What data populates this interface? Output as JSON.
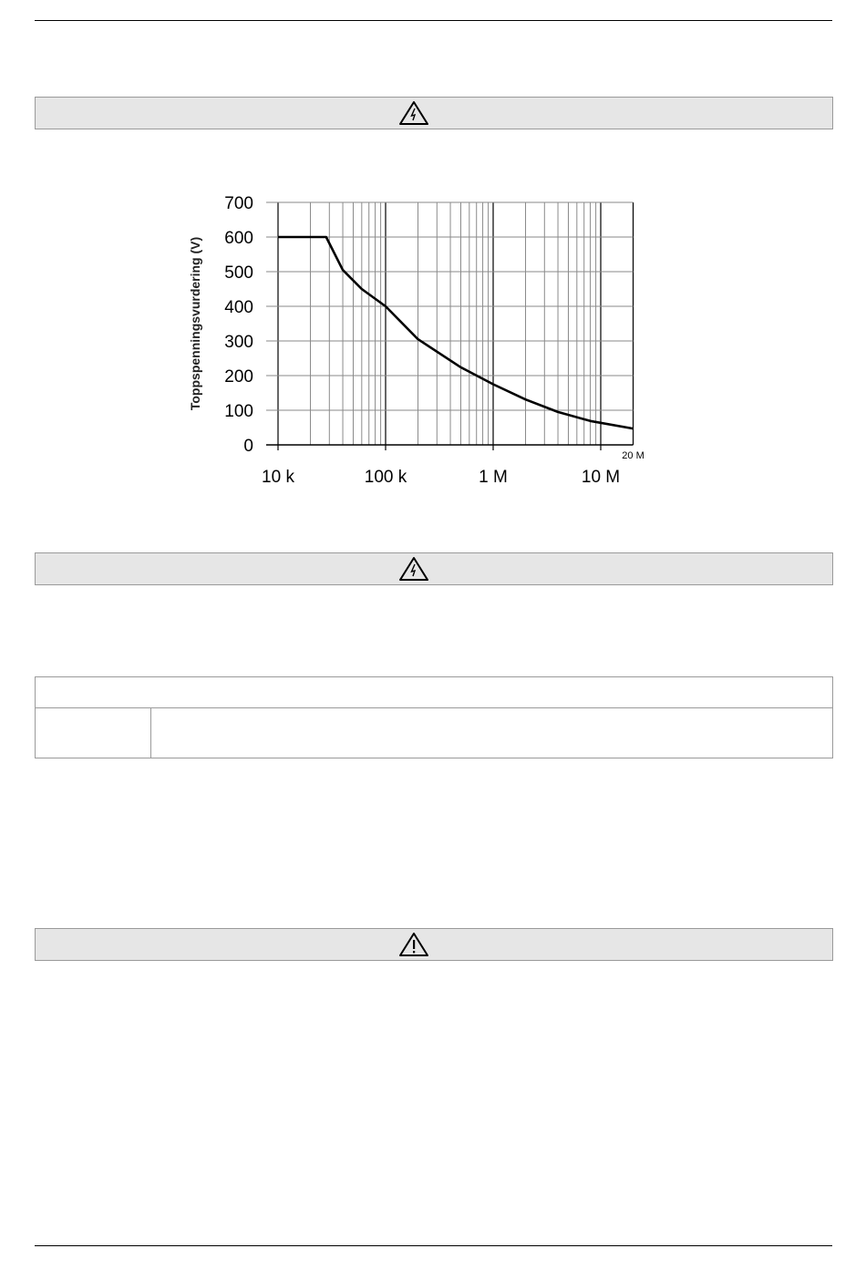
{
  "warning_icons": [
    "electric-hazard-icon",
    "electric-hazard-icon",
    "general-warning-icon"
  ],
  "chart_data": {
    "type": "line",
    "title": "",
    "xlabel": "",
    "ylabel": "Toppspenningsvurdering (V)",
    "xscale": "log",
    "xlim": [
      10000,
      20000000
    ],
    "ylim": [
      0,
      700
    ],
    "grid": true,
    "x_tick_labels": [
      "10 k",
      "100 k",
      "1 M",
      "10 M"
    ],
    "x_ticks": [
      10000,
      100000,
      1000000,
      10000000
    ],
    "x_end_label": "20 M",
    "y_ticks": [
      0,
      100,
      200,
      300,
      400,
      500,
      600,
      700
    ],
    "series": [
      {
        "x": [
          10000,
          28000,
          40000,
          60000,
          100000,
          200000,
          500000,
          1000000,
          2000000,
          4000000,
          8000000,
          20000000
        ],
        "y": [
          600,
          600,
          505,
          450,
          400,
          305,
          224,
          175,
          131,
          95,
          69,
          47
        ]
      }
    ]
  }
}
